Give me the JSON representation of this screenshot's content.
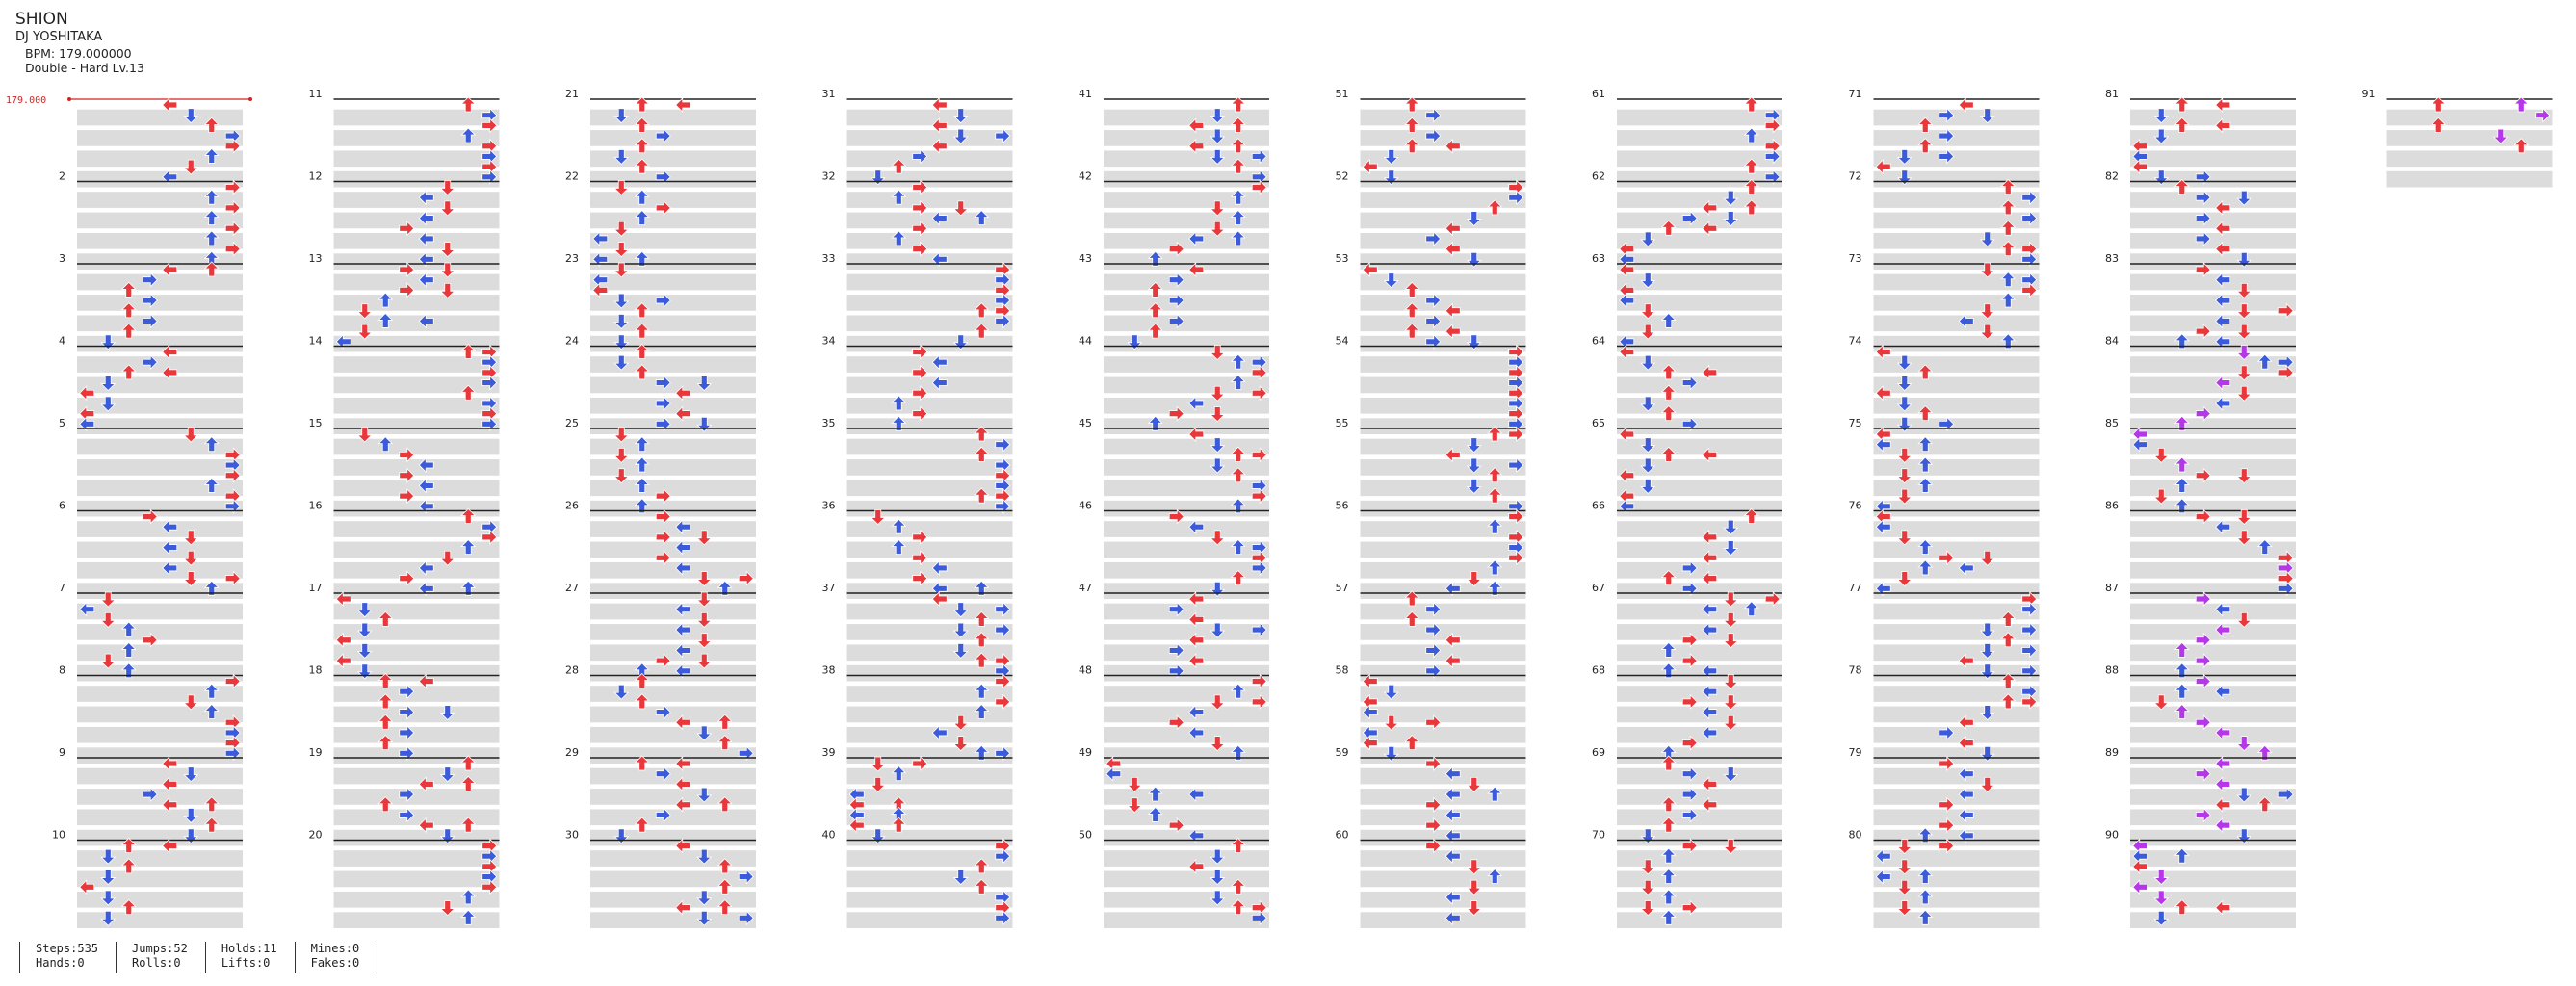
{
  "song": {
    "title": "SHION",
    "artist": "DJ YOSHITAKA",
    "bpm_text": "BPM: 179.000000",
    "difficulty_text": "Double - Hard Lv.13"
  },
  "bpm_marker": "179.000",
  "colors": {
    "quarter": "#e8383b",
    "eighth": "#3b5bdb",
    "sixteenth": "#b538e8",
    "mine": "#f2d23c",
    "hold": "#5ad45a",
    "stripe": "#dcdcdc",
    "measure_line": "#222222"
  },
  "chart": {
    "total_measures": 91,
    "measures_per_column": 10,
    "columns_shown": 10,
    "lanes": 8,
    "measure_label_every": 1
  },
  "stats": {
    "steps": "Steps:535",
    "hands": "Hands:0",
    "jumps": "Jumps:52",
    "rolls": "Rolls:0",
    "holds": "Holds:11",
    "lifts": "Lifts:0",
    "mines": "Mines:0",
    "fakes": "Fakes:0"
  }
}
